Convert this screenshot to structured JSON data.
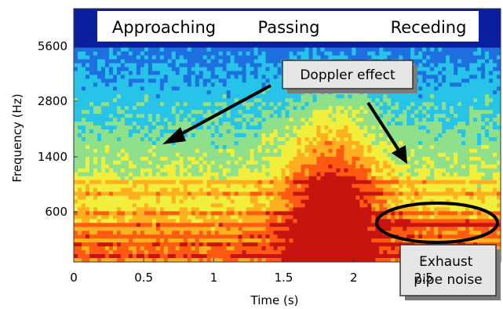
{
  "chart_data": {
    "type": "heatmap",
    "title": "",
    "xlabel": "Time (s)",
    "ylabel": "Frequency (Hz)",
    "x_ticks": [
      "0",
      "0.5",
      "1",
      "1.5",
      "2",
      "2.5"
    ],
    "x_tick_values": [
      0,
      0.5,
      1,
      1.5,
      2,
      2.5
    ],
    "xlim": [
      0,
      3.05
    ],
    "y_ticks": [
      "600",
      "1400",
      "2800",
      "5600"
    ],
    "y_tick_values": [
      600,
      1400,
      2800,
      5600
    ],
    "grid": false,
    "phases": [
      "Approaching",
      "Passing",
      "Receding"
    ],
    "annotations": [
      {
        "text": "Doppler effect"
      },
      {
        "text": "Exhaust pipe noise"
      }
    ],
    "exhaust_text_lines": [
      "Exhaust",
      "pipe noise"
    ],
    "peak_time_s": 1.85,
    "colormap": [
      "#0a1f9e",
      "#1e6fe0",
      "#27c3e8",
      "#8fe08a",
      "#f2ee3c",
      "#ffb020",
      "#ff5a12",
      "#c8140e"
    ]
  }
}
